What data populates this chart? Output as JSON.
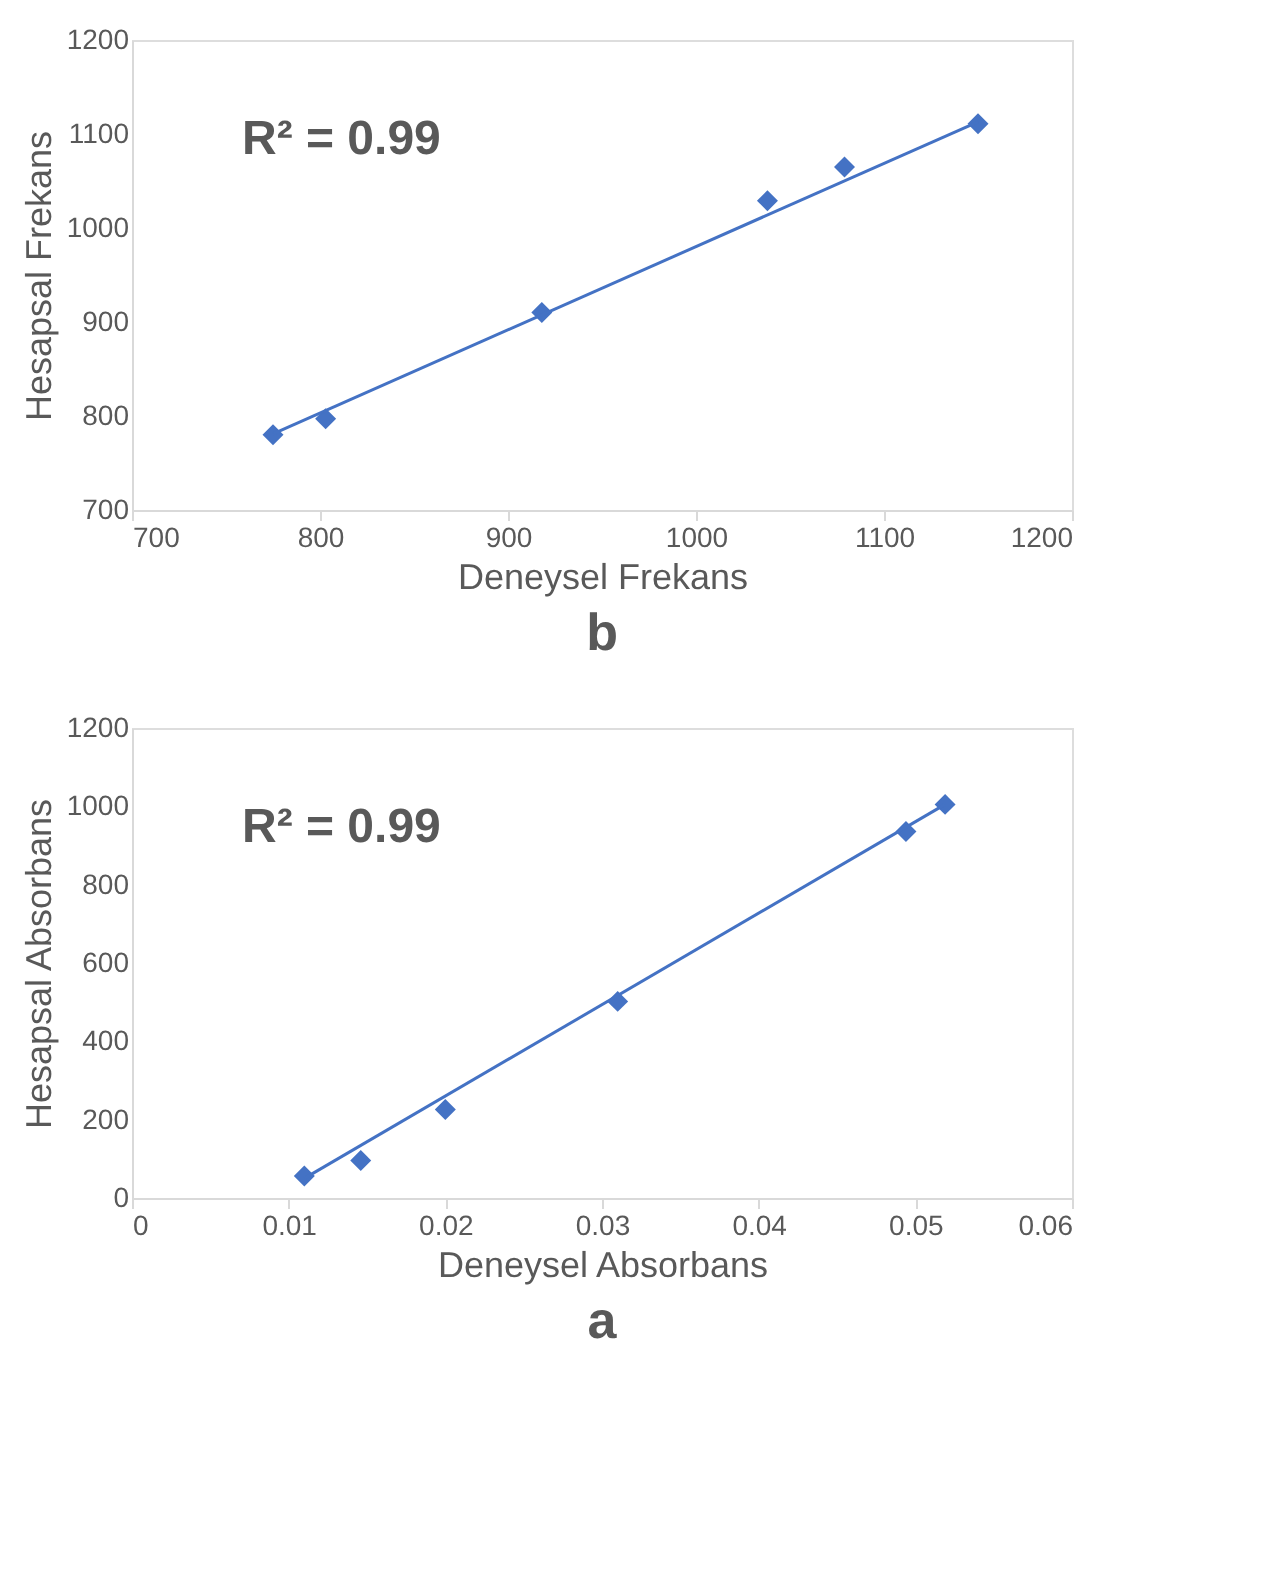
{
  "chart_data": [
    {
      "type": "scatter",
      "title": "b",
      "xlabel": "Deneysel Frekans",
      "ylabel": "Hesapsal Frekans",
      "annotations": [
        "R² = 0.99"
      ],
      "x": [
        775,
        803,
        918,
        1038,
        1079,
        1150
      ],
      "series": [
        {
          "color": "#4472c4",
          "marker": "diamond",
          "values": [
            780,
            797,
            910,
            1029,
            1065,
            1111
          ]
        },
        {
          "type": "line",
          "color": "#4472c4",
          "x": [
            775,
            1150
          ],
          "values": [
            781,
            1113
          ]
        }
      ],
      "xlim": [
        700,
        1200
      ],
      "xticks": [
        700,
        800,
        900,
        1000,
        1100,
        1200
      ],
      "ylim": [
        700,
        1200
      ],
      "yticks": [
        700,
        800,
        900,
        1000,
        1100,
        1200
      ],
      "grid": false
    },
    {
      "type": "scatter",
      "title": "a",
      "xlabel": "Deneysel Absorbans",
      "ylabel": "Hesapsal Absorbans",
      "annotations": [
        "R² = 0.99"
      ],
      "x": [
        0.011,
        0.0146,
        0.02,
        0.031,
        0.0494,
        0.0519
      ],
      "series": [
        {
          "color": "#4472c4",
          "marker": "diamond",
          "values": [
            56,
            96,
            226,
            502,
            936,
            1005
          ]
        },
        {
          "type": "line",
          "color": "#4472c4",
          "x": [
            0.011,
            0.0519
          ],
          "values": [
            50,
            1005
          ]
        }
      ],
      "xlim": [
        0,
        0.06
      ],
      "xticks": [
        0,
        0.01,
        0.02,
        0.03,
        0.04,
        0.05,
        0.06
      ],
      "ylim": [
        0,
        1200
      ],
      "yticks": [
        0,
        200,
        400,
        600,
        800,
        1000,
        1200
      ],
      "grid": false
    }
  ]
}
